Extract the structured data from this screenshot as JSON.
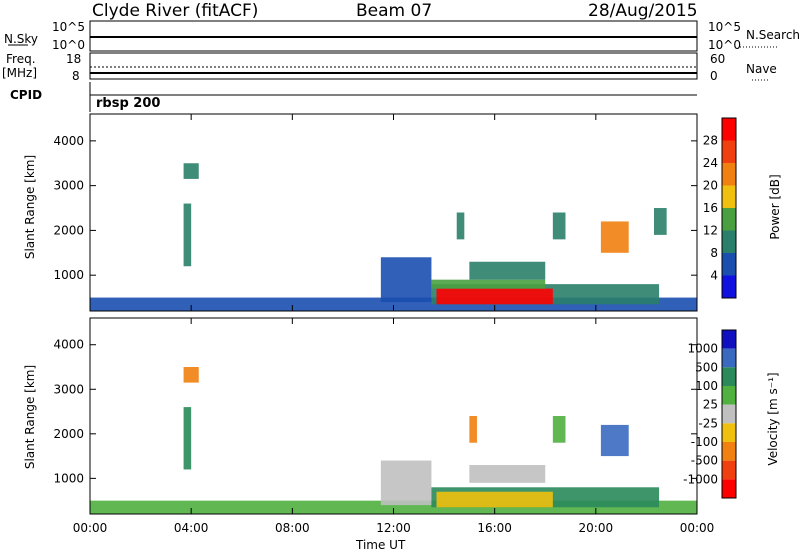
{
  "header": {
    "station": "Clyde River (fitACF)",
    "beam": "Beam 07",
    "date": "28/Aug/2015"
  },
  "top_panels": {
    "nsky_label": "N.Sky",
    "nsky_ticks": [
      "10^5",
      "10^0"
    ],
    "nsearch_label": "N.Search",
    "nsearch_ticks": [
      "10^5",
      "10^0"
    ],
    "freq_label": "Freq.",
    "freq_unit": "[MHz]",
    "freq_ticks": [
      "18",
      "8"
    ],
    "nave_label": "Nave",
    "nave_ticks": [
      "60",
      "0"
    ],
    "cpid_label": "CPID",
    "cpid_value": "rbsp 200"
  },
  "colors": {
    "power": [
      "#1010e0",
      "#1a4fb0",
      "#2a7f6a",
      "#4aa040",
      "#f0c010",
      "#f08010",
      "#f04010",
      "#ff0000"
    ],
    "velocity": [
      "#1010c0",
      "#3a6ac0",
      "#2a8a5a",
      "#50b040",
      "#c0c0c0",
      "#f0c010",
      "#f08010",
      "#f04010",
      "#ff0000"
    ]
  },
  "chart_data": [
    {
      "type": "heatmap",
      "name": "power",
      "ylabel": "Slant Range [km]",
      "yticks": [
        "1000",
        "2000",
        "3000",
        "4000"
      ],
      "ylim": [
        200,
        4600
      ],
      "colorbar_label": "Power [dB]",
      "colorbar_ticks": [
        "4",
        "8",
        "12",
        "16",
        "20",
        "24",
        "28"
      ],
      "colorbar_range": [
        0,
        32
      ],
      "regions": [
        {
          "t": [
            0.0,
            24.0
          ],
          "r": [
            200,
            500
          ],
          "v": 6
        },
        {
          "t": [
            3.7,
            4.3
          ],
          "r": [
            3150,
            3500
          ],
          "v": 10
        },
        {
          "t": [
            3.7,
            4.0
          ],
          "r": [
            1200,
            2600
          ],
          "v": 8
        },
        {
          "t": [
            11.5,
            13.5
          ],
          "r": [
            400,
            1400
          ],
          "v": 6
        },
        {
          "t": [
            13.5,
            22.5
          ],
          "r": [
            350,
            800
          ],
          "v": 10
        },
        {
          "t": [
            13.7,
            18.3
          ],
          "r": [
            350,
            700
          ],
          "v": 28
        },
        {
          "t": [
            13.5,
            18.0
          ],
          "r": [
            700,
            900
          ],
          "v": 14
        },
        {
          "t": [
            15.0,
            18.0
          ],
          "r": [
            900,
            1300
          ],
          "v": 8
        },
        {
          "t": [
            18.3,
            18.8
          ],
          "r": [
            1800,
            2400
          ],
          "v": 10
        },
        {
          "t": [
            20.2,
            21.3
          ],
          "r": [
            1500,
            2200
          ],
          "v": 22
        },
        {
          "t": [
            14.5,
            14.8
          ],
          "r": [
            1800,
            2400
          ],
          "v": 10
        },
        {
          "t": [
            22.3,
            22.8
          ],
          "r": [
            1900,
            2500
          ],
          "v": 8
        }
      ]
    },
    {
      "type": "heatmap",
      "name": "velocity",
      "xlabel": "Time UT",
      "ylabel": "Slant Range [km]",
      "yticks": [
        "1000",
        "2000",
        "3000",
        "4000"
      ],
      "ylim": [
        200,
        4600
      ],
      "xticks": [
        "00:00",
        "04:00",
        "08:00",
        "12:00",
        "16:00",
        "20:00",
        "00:00"
      ],
      "xlim": [
        0,
        24
      ],
      "colorbar_label": "Velocity [m s⁻¹]",
      "colorbar_ticks": [
        "1000",
        "500",
        "100",
        "25",
        "-25",
        "-100",
        "-500",
        "-1000"
      ],
      "regions": [
        {
          "t": [
            0.0,
            24.0
          ],
          "r": [
            200,
            500
          ],
          "v": 75
        },
        {
          "t": [
            3.7,
            4.3
          ],
          "r": [
            3150,
            3500
          ],
          "v": -300
        },
        {
          "t": [
            3.7,
            4.0
          ],
          "r": [
            1200,
            2600
          ],
          "v": 300
        },
        {
          "t": [
            11.5,
            13.5
          ],
          "r": [
            400,
            1400
          ],
          "v": 0
        },
        {
          "t": [
            13.5,
            22.5
          ],
          "r": [
            350,
            800
          ],
          "v": 150
        },
        {
          "t": [
            13.7,
            18.3
          ],
          "r": [
            350,
            700
          ],
          "v": -60
        },
        {
          "t": [
            15.0,
            18.0
          ],
          "r": [
            900,
            1300
          ],
          "v": 0
        },
        {
          "t": [
            15.0,
            15.3
          ],
          "r": [
            1800,
            2400
          ],
          "v": -300
        },
        {
          "t": [
            20.2,
            21.3
          ],
          "r": [
            1500,
            2200
          ],
          "v": 800
        },
        {
          "t": [
            18.3,
            18.8
          ],
          "r": [
            1800,
            2400
          ],
          "v": 75
        }
      ]
    }
  ]
}
